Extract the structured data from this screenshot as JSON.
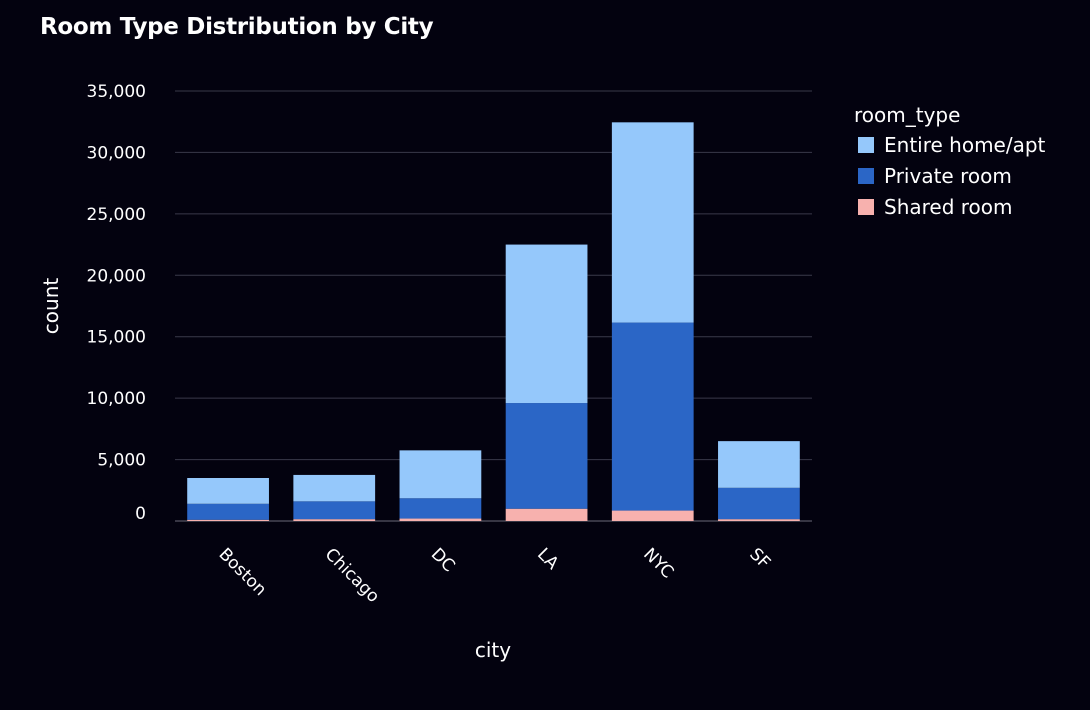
{
  "chart_data": {
    "type": "bar",
    "stacked": true,
    "title": "Room Type Distribution by City",
    "xlabel": "city",
    "ylabel": "count",
    "categories": [
      "Boston",
      "Chicago",
      "DC",
      "LA",
      "NYC",
      "SF"
    ],
    "ylim": [
      0,
      35000
    ],
    "yticks": [
      0,
      5000,
      10000,
      15000,
      20000,
      25000,
      30000,
      35000
    ],
    "ytick_labels": [
      "0",
      "5,000",
      "10,000",
      "15,000",
      "20,000",
      "25,000",
      "30,000",
      "35,000"
    ],
    "grid": true,
    "legend": {
      "title": "room_type",
      "placement": "top-right"
    },
    "series": [
      {
        "name": "Shared room",
        "color": "#f7b1ae",
        "values": [
          100,
          150,
          200,
          1000,
          850,
          150
        ]
      },
      {
        "name": "Private room",
        "color": "#2b66c6",
        "values": [
          1300,
          1450,
          1650,
          8600,
          15300,
          2550
        ]
      },
      {
        "name": "Entire home/apt",
        "color": "#95c8fb",
        "values": [
          2100,
          2150,
          3900,
          12900,
          16300,
          3800
        ]
      }
    ],
    "legend_order": [
      "Entire home/apt",
      "Private room",
      "Shared room"
    ]
  }
}
